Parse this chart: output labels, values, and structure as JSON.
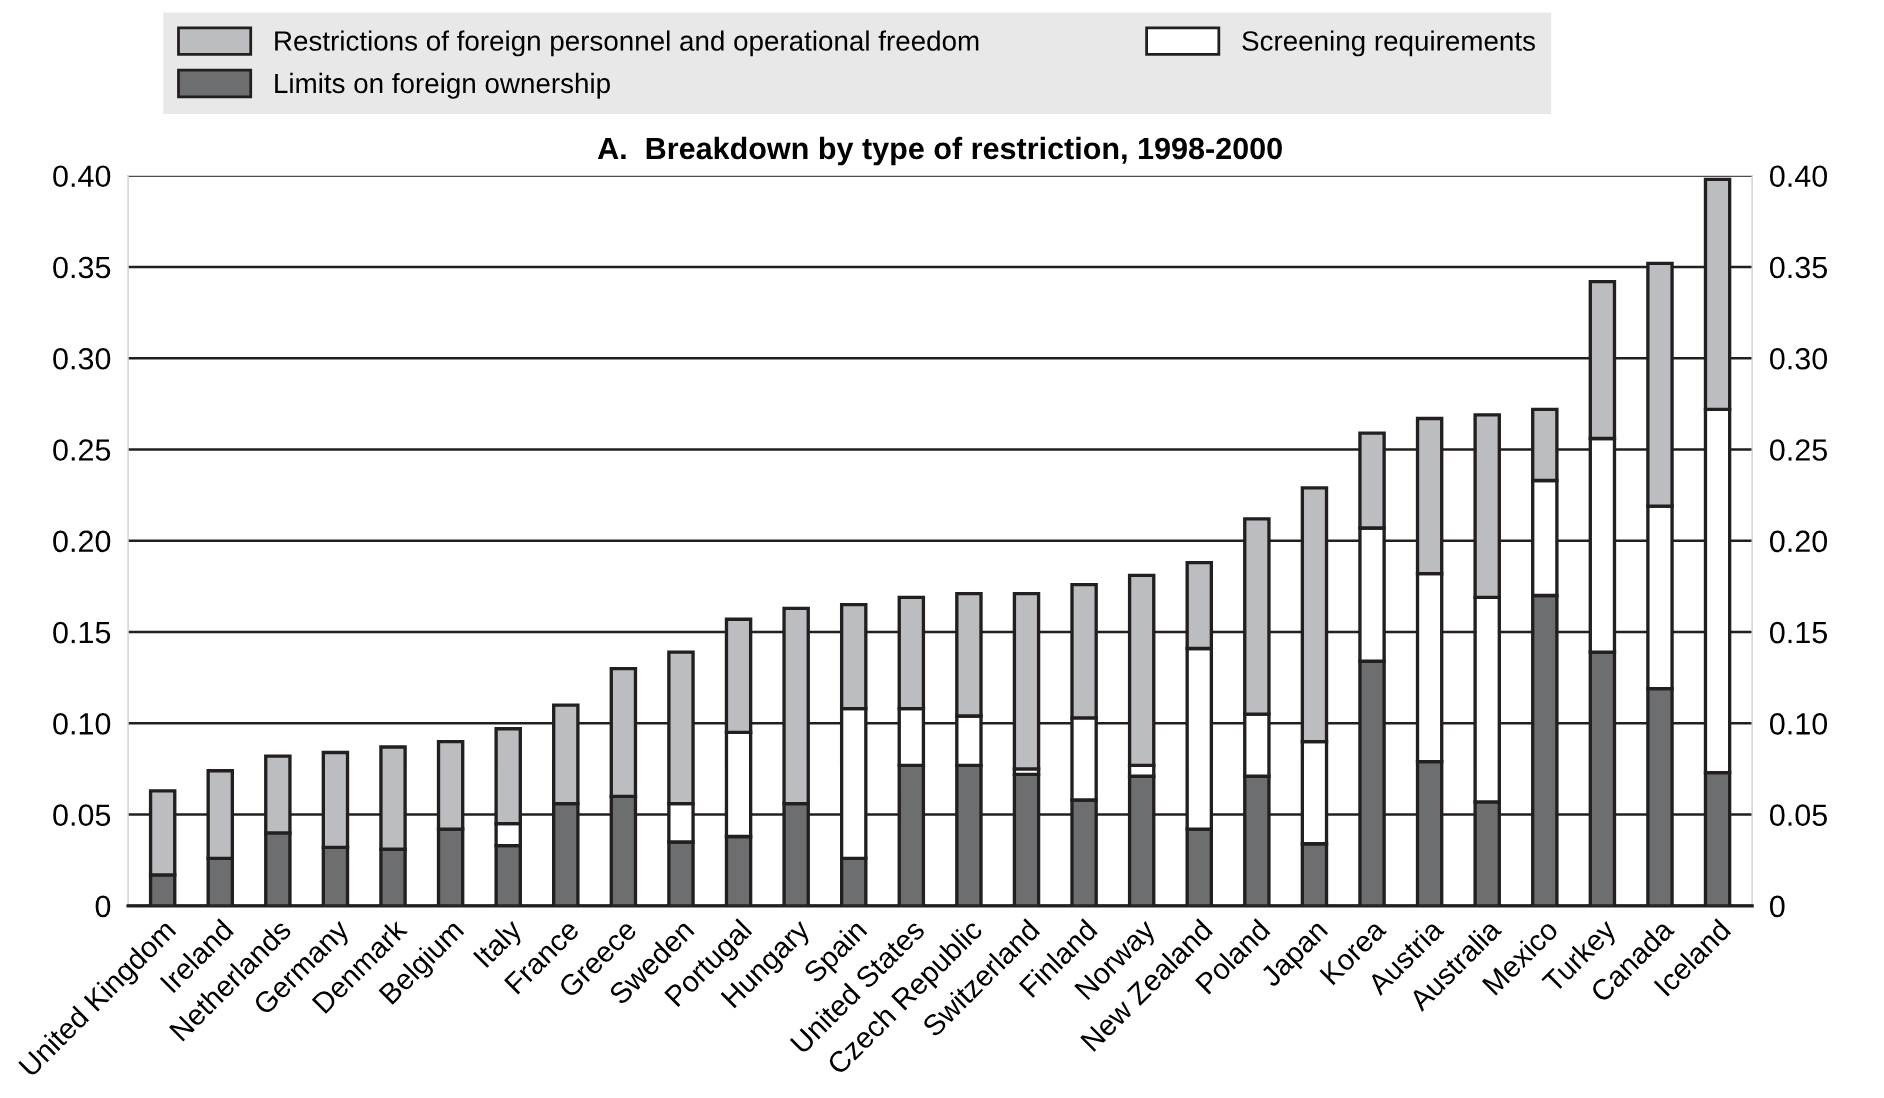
{
  "chart_data": {
    "type": "bar",
    "stacked": true,
    "title": "A.  Breakdown by type of restriction, 1998-2000",
    "categories": [
      "United Kingdom",
      "Ireland",
      "Netherlands",
      "Germany",
      "Denmark",
      "Belgium",
      "Italy",
      "France",
      "Greece",
      "Sweden",
      "Portugal",
      "Hungary",
      "Spain",
      "United States",
      "Czech Republic",
      "Switzerland",
      "Finland",
      "Norway",
      "New Zealand",
      "Poland",
      "Japan",
      "Korea",
      "Austria",
      "Australia",
      "Mexico",
      "Turkey",
      "Canada",
      "Iceland"
    ],
    "series": [
      {
        "name": "Limits on foreign ownership",
        "color": "#6d6e70",
        "values": [
          0.017,
          0.026,
          0.04,
          0.032,
          0.031,
          0.042,
          0.033,
          0.056,
          0.06,
          0.035,
          0.038,
          0.056,
          0.026,
          0.077,
          0.077,
          0.072,
          0.058,
          0.071,
          0.042,
          0.071,
          0.034,
          0.134,
          0.079,
          0.057,
          0.17,
          0.139,
          0.119,
          0.073
        ]
      },
      {
        "name": "Screening requirements",
        "color": "#ffffff",
        "values": [
          null,
          null,
          null,
          null,
          null,
          null,
          0.012,
          null,
          null,
          0.021,
          0.057,
          null,
          0.082,
          0.031,
          0.027,
          0.003,
          0.045,
          0.006,
          0.099,
          0.034,
          0.056,
          0.073,
          0.103,
          0.112,
          0.063,
          0.117,
          0.1,
          0.199
        ]
      },
      {
        "name": "Restrictions of foreign personnel and operational freedom",
        "color": "#bcbdc0",
        "values": [
          0.046,
          0.048,
          0.042,
          0.052,
          0.056,
          0.048,
          0.052,
          0.054,
          0.07,
          0.083,
          0.062,
          0.107,
          0.057,
          0.061,
          0.067,
          0.096,
          0.073,
          0.104,
          0.047,
          0.107,
          0.139,
          0.052,
          0.085,
          0.1,
          0.039,
          0.086,
          0.133,
          0.126
        ]
      }
    ],
    "ylim": [
      0,
      0.4
    ],
    "yticks": [
      {
        "value": 0,
        "label": "0"
      },
      {
        "value": 0.05,
        "label": "0.05"
      },
      {
        "value": 0.1,
        "label": "0.10"
      },
      {
        "value": 0.15,
        "label": "0.15"
      },
      {
        "value": 0.2,
        "label": "0.20"
      },
      {
        "value": 0.25,
        "label": "0.25"
      },
      {
        "value": 0.3,
        "label": "0.30"
      },
      {
        "value": 0.35,
        "label": "0.35"
      },
      {
        "value": 0.4,
        "label": "0.40"
      }
    ],
    "y2lim": [
      0,
      0.4
    ],
    "y2ticks": [
      {
        "value": 0,
        "label": "0"
      },
      {
        "value": 0.05,
        "label": "0.05"
      },
      {
        "value": 0.1,
        "label": "0.10"
      },
      {
        "value": 0.15,
        "label": "0.15"
      },
      {
        "value": 0.2,
        "label": "0.20"
      },
      {
        "value": 0.25,
        "label": "0.25"
      },
      {
        "value": 0.3,
        "label": "0.30"
      },
      {
        "value": 0.35,
        "label": "0.35"
      },
      {
        "value": 0.4,
        "label": "0.40"
      }
    ],
    "grid": "y",
    "legend": "top"
  }
}
